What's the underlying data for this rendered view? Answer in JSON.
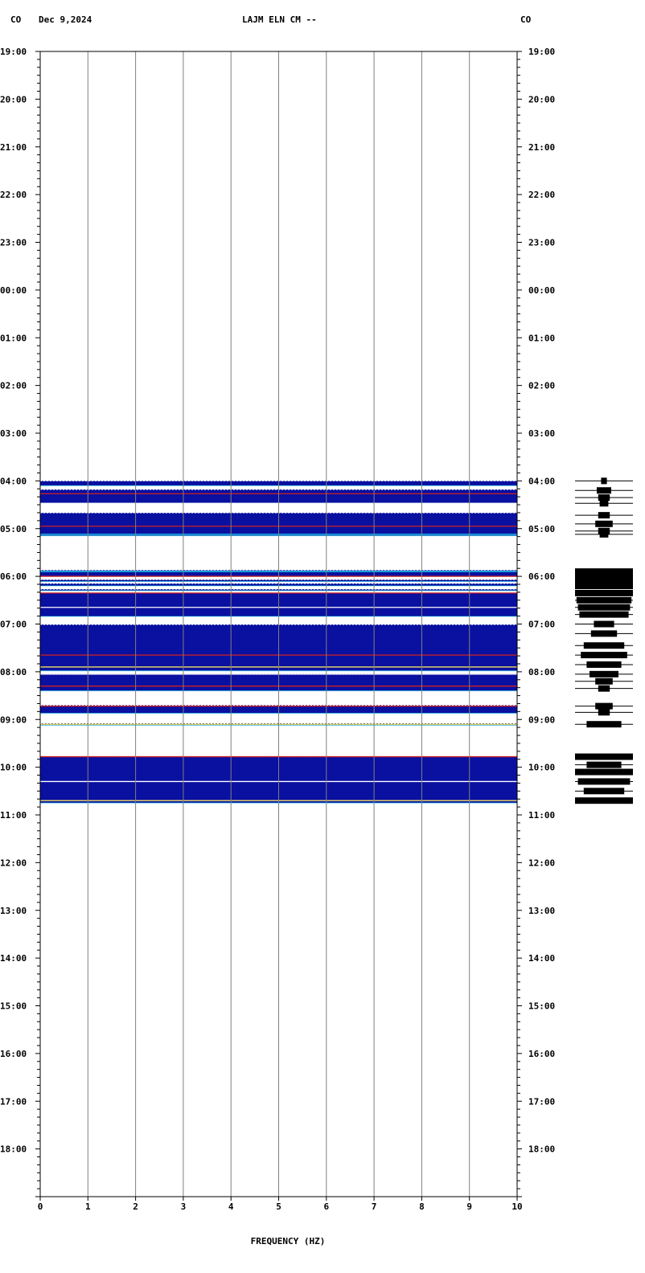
{
  "header": {
    "left_code": "CO",
    "date": "Dec 9,2024",
    "station": "LAJM ELN CM --",
    "right_code": "CO"
  },
  "chart_data": {
    "type": "heatmap",
    "xlabel": "FREQUENCY (HZ)",
    "xlim": [
      0,
      10
    ],
    "x_ticks": [
      "0",
      "1",
      "2",
      "3",
      "4",
      "5",
      "6",
      "7",
      "8",
      "9",
      "10"
    ],
    "y_ticks": [
      "19:00",
      "20:00",
      "21:00",
      "22:00",
      "23:00",
      "00:00",
      "01:00",
      "02:00",
      "03:00",
      "04:00",
      "05:00",
      "06:00",
      "07:00",
      "08:00",
      "09:00",
      "10:00",
      "11:00",
      "12:00",
      "13:00",
      "14:00",
      "15:00",
      "16:00",
      "17:00",
      "18:00"
    ],
    "ylim_hours": [
      0,
      24
    ],
    "colors": {
      "background_power": "#0a10a0",
      "high_power": "#ffffff",
      "mid_power": "#20d8f0",
      "peak_power": "#d02020",
      "edge_power": "#f0e060",
      "grid": "#808080"
    },
    "data_segments_hours": [
      {
        "start": 9.0,
        "end": 9.1
      },
      {
        "start": 9.18,
        "end": 9.47
      },
      {
        "start": 9.67,
        "end": 10.15
      },
      {
        "start": 10.87,
        "end": 11.0
      },
      {
        "start": 11.07,
        "end": 11.11
      },
      {
        "start": 11.15,
        "end": 11.2
      },
      {
        "start": 11.27,
        "end": 11.3
      },
      {
        "start": 11.35,
        "end": 11.84
      },
      {
        "start": 12.01,
        "end": 12.98
      },
      {
        "start": 13.04,
        "end": 13.4
      },
      {
        "start": 13.7,
        "end": 13.87
      },
      {
        "start": 14.08,
        "end": 14.12
      },
      {
        "start": 14.77,
        "end": 15.75
      }
    ],
    "bright_lines_hours": [
      {
        "t": 9.27,
        "color": "#d02020"
      },
      {
        "t": 9.47,
        "color": "#ffffff"
      },
      {
        "t": 9.95,
        "color": "#d02020"
      },
      {
        "t": 10.12,
        "color": "#20d8f0"
      },
      {
        "t": 10.9,
        "color": "#20d8f0"
      },
      {
        "t": 11.0,
        "color": "#d02020"
      },
      {
        "t": 11.35,
        "color": "#d02020"
      },
      {
        "t": 11.65,
        "color": "#ffffff"
      },
      {
        "t": 12.65,
        "color": "#d02020"
      },
      {
        "t": 12.9,
        "color": "#f0e060"
      },
      {
        "t": 13.05,
        "color": "#ffffff"
      },
      {
        "t": 13.3,
        "color": "#d02020"
      },
      {
        "t": 13.72,
        "color": "#d02020"
      },
      {
        "t": 14.1,
        "color": "#f0e060"
      },
      {
        "t": 14.78,
        "color": "#d02020"
      },
      {
        "t": 15.3,
        "color": "#ffffff"
      },
      {
        "t": 15.7,
        "color": "#f0e060"
      }
    ],
    "seismogram_events": [
      {
        "t": 9.0,
        "amp": 0.1
      },
      {
        "t": 9.2,
        "amp": 0.25
      },
      {
        "t": 9.35,
        "amp": 0.2
      },
      {
        "t": 9.47,
        "amp": 0.15
      },
      {
        "t": 9.72,
        "amp": 0.2
      },
      {
        "t": 9.9,
        "amp": 0.3
      },
      {
        "t": 10.05,
        "amp": 0.2
      },
      {
        "t": 10.12,
        "amp": 0.15
      },
      {
        "t": 10.9,
        "amp": 1.0
      },
      {
        "t": 11.0,
        "amp": 1.0
      },
      {
        "t": 11.1,
        "amp": 1.0
      },
      {
        "t": 11.2,
        "amp": 1.0
      },
      {
        "t": 11.35,
        "amp": 1.0
      },
      {
        "t": 11.5,
        "amp": 0.95
      },
      {
        "t": 11.65,
        "amp": 0.9
      },
      {
        "t": 11.8,
        "amp": 0.85
      },
      {
        "t": 12.0,
        "amp": 0.35
      },
      {
        "t": 12.2,
        "amp": 0.45
      },
      {
        "t": 12.45,
        "amp": 0.7
      },
      {
        "t": 12.65,
        "amp": 0.8
      },
      {
        "t": 12.85,
        "amp": 0.6
      },
      {
        "t": 13.05,
        "amp": 0.5
      },
      {
        "t": 13.2,
        "amp": 0.3
      },
      {
        "t": 13.35,
        "amp": 0.2
      },
      {
        "t": 13.72,
        "amp": 0.3
      },
      {
        "t": 13.85,
        "amp": 0.2
      },
      {
        "t": 14.1,
        "amp": 0.6
      },
      {
        "t": 14.78,
        "amp": 1.0
      },
      {
        "t": 14.95,
        "amp": 0.6
      },
      {
        "t": 15.1,
        "amp": 1.0
      },
      {
        "t": 15.3,
        "amp": 0.9
      },
      {
        "t": 15.5,
        "amp": 0.7
      },
      {
        "t": 15.7,
        "amp": 1.0
      }
    ]
  }
}
